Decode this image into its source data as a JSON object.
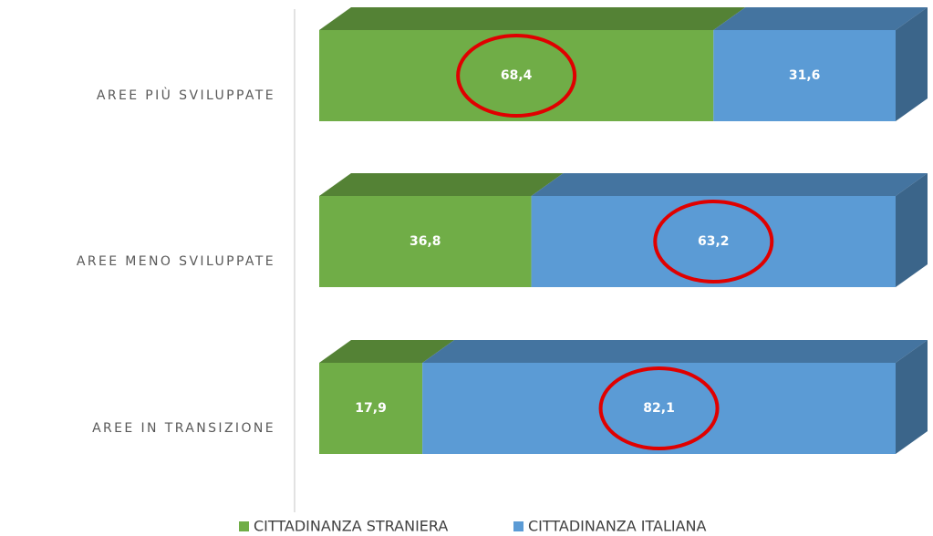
{
  "chart_data": {
    "type": "bar3d_stacked_horizontal",
    "categories": [
      "AREE PIÙ SVILUPPATE",
      "AREE MENO SVILUPPATE",
      "AREE IN TRANSIZIONE"
    ],
    "series": [
      {
        "name": "CITTADINANZA STRANIERA",
        "color": "#70ad47",
        "values": [
          68.4,
          36.8,
          17.9
        ],
        "value_labels": [
          "68,4",
          "36,8",
          "17,9"
        ]
      },
      {
        "name": "CITTADINANZA ITALIANA",
        "color": "#5b9bd5",
        "values": [
          31.6,
          63.2,
          82.1
        ],
        "value_labels": [
          "31,6",
          "63,2",
          "82,1"
        ]
      }
    ],
    "xlim": [
      0,
      100
    ],
    "legend": "bottom"
  }
}
